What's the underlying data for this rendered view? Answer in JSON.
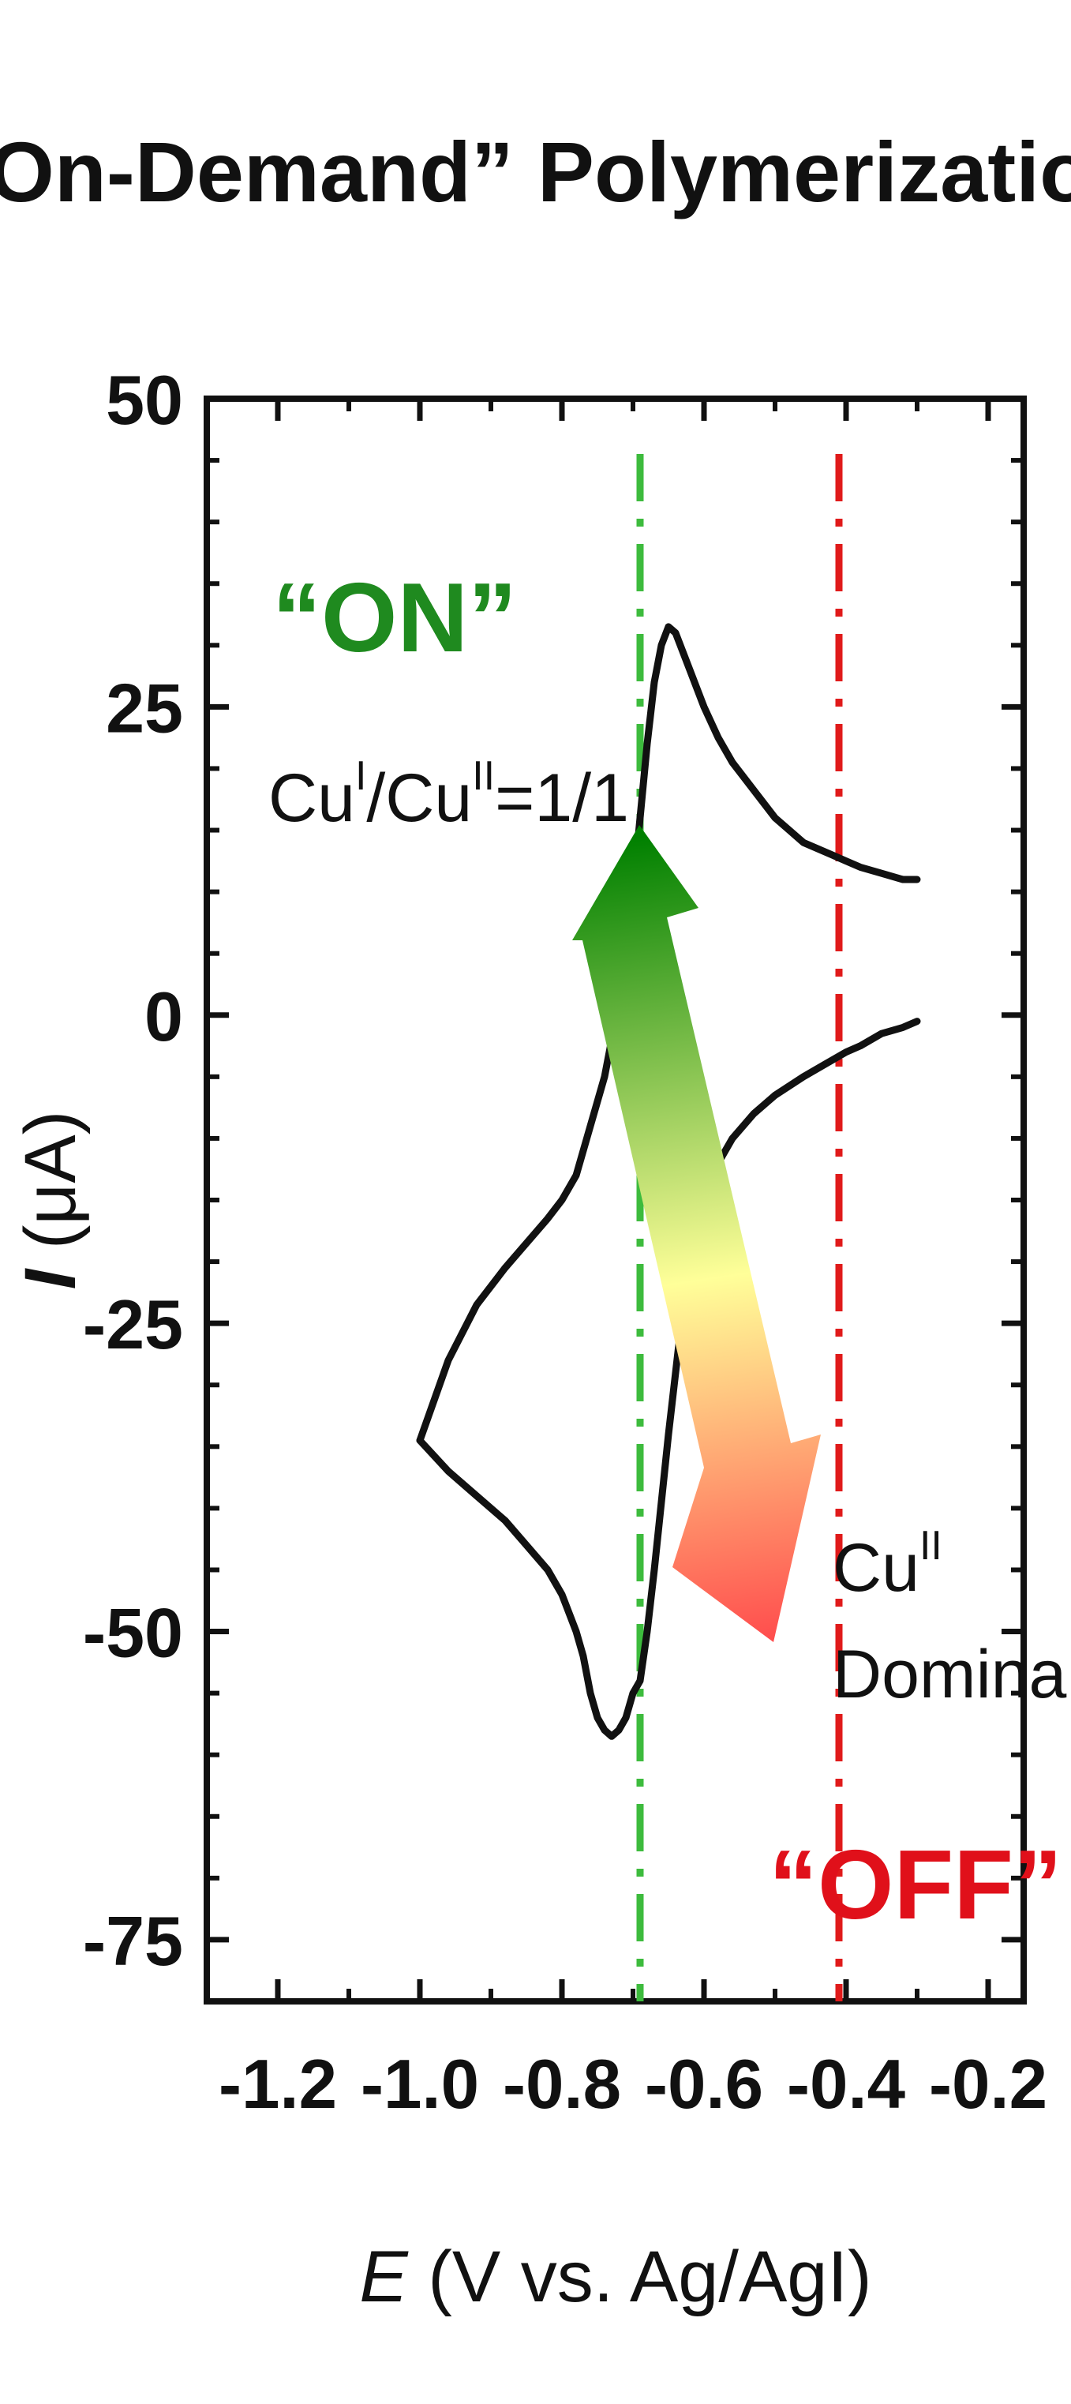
{
  "title": "“On-Demand” Polymerization",
  "colors": {
    "on": "#1f8a1f",
    "off": "#e0101a",
    "on_line": "#3dbb3d",
    "off_line": "#e01a1a",
    "curve": "#111111",
    "arrow_top": "#008000",
    "arrow_mid": "#ffff99",
    "arrow_bottom": "#ff4d4d"
  },
  "annotations": {
    "on": "“ON”",
    "off": "“OFF”",
    "ratio": {
      "base1": "Cu",
      "sup1": "I",
      "base2": "/Cu",
      "sup2": "II",
      "tail": "=1/1"
    },
    "cu2": {
      "base": "Cu",
      "sup": "II"
    },
    "dominant": "Dominant"
  },
  "chart_data": {
    "type": "line",
    "title": "“On-Demand” Polymerization",
    "xlabel": {
      "italic": "E",
      "rest": " (V vs. Ag/AgI)"
    },
    "ylabel": {
      "italic": "I",
      "rest": " (μA)"
    },
    "xlim": [
      -1.3,
      -0.15
    ],
    "ylim": [
      -80,
      50
    ],
    "x_ticks": [
      -1.2,
      -1.0,
      -0.8,
      -0.6,
      -0.4,
      -0.2
    ],
    "x_tick_labels": [
      "-1.2",
      "-1.0",
      "-0.8",
      "-0.6",
      "-0.4",
      "-0.2"
    ],
    "y_ticks": [
      50,
      25,
      0,
      -25,
      -50,
      -75
    ],
    "y_tick_labels": [
      "50",
      "25",
      "0",
      "-25",
      "-50",
      "-75"
    ],
    "grid": false,
    "series": [
      {
        "x": [
          -0.3,
          -0.32,
          -0.35,
          -0.38,
          -0.4,
          -0.43,
          -0.46,
          -0.5,
          -0.53,
          -0.56,
          -0.58,
          -0.6,
          -0.62,
          -0.63,
          -0.64,
          -0.65,
          -0.66,
          -0.67,
          -0.68,
          -0.69,
          -0.7,
          -0.71,
          -0.72,
          -0.73,
          -0.74,
          -0.75,
          -0.76,
          -0.77,
          -0.78,
          -0.8,
          -0.82,
          -0.85,
          -0.88,
          -0.92,
          -0.96,
          -1.0
        ],
        "y": [
          -0.5,
          -1,
          -1.5,
          -2.5,
          -3,
          -4,
          -5,
          -6.5,
          -8,
          -10,
          -12,
          -15,
          -20,
          -24,
          -29,
          -34,
          -39.5,
          -45,
          -50,
          -54,
          -55,
          -57,
          -58,
          -58.5,
          -58,
          -57,
          -55,
          -52,
          -50,
          -47,
          -45,
          -43,
          -41,
          -39,
          -37,
          -34.5
        ]
      },
      {
        "x": [
          -1.0,
          -0.96,
          -0.92,
          -0.88,
          -0.85,
          -0.82,
          -0.8,
          -0.78,
          -0.76,
          -0.74,
          -0.72,
          -0.71,
          -0.7,
          -0.69,
          -0.68,
          -0.67,
          -0.66,
          -0.65,
          -0.64,
          -0.63,
          -0.62,
          -0.6,
          -0.58,
          -0.56,
          -0.54,
          -0.52,
          -0.5,
          -0.48,
          -0.46,
          -0.44,
          -0.42,
          -0.4,
          -0.38,
          -0.35,
          -0.32,
          -0.3
        ],
        "y": [
          -34.5,
          -28,
          -23.5,
          -20.5,
          -18.5,
          -16.5,
          -15,
          -13,
          -9,
          -5,
          1,
          5,
          10,
          16,
          22,
          27,
          30,
          31.5,
          31,
          29.5,
          28,
          25,
          22.5,
          20.5,
          19,
          17.5,
          16,
          15,
          14,
          13.5,
          13,
          12.5,
          12,
          11.5,
          11,
          11
        ]
      }
    ],
    "vlines": [
      {
        "x": -0.69,
        "style": "dash-dot",
        "color": "#3dbb3d"
      },
      {
        "x": -0.41,
        "style": "dash-dot",
        "color": "#e01a1a"
      }
    ]
  }
}
